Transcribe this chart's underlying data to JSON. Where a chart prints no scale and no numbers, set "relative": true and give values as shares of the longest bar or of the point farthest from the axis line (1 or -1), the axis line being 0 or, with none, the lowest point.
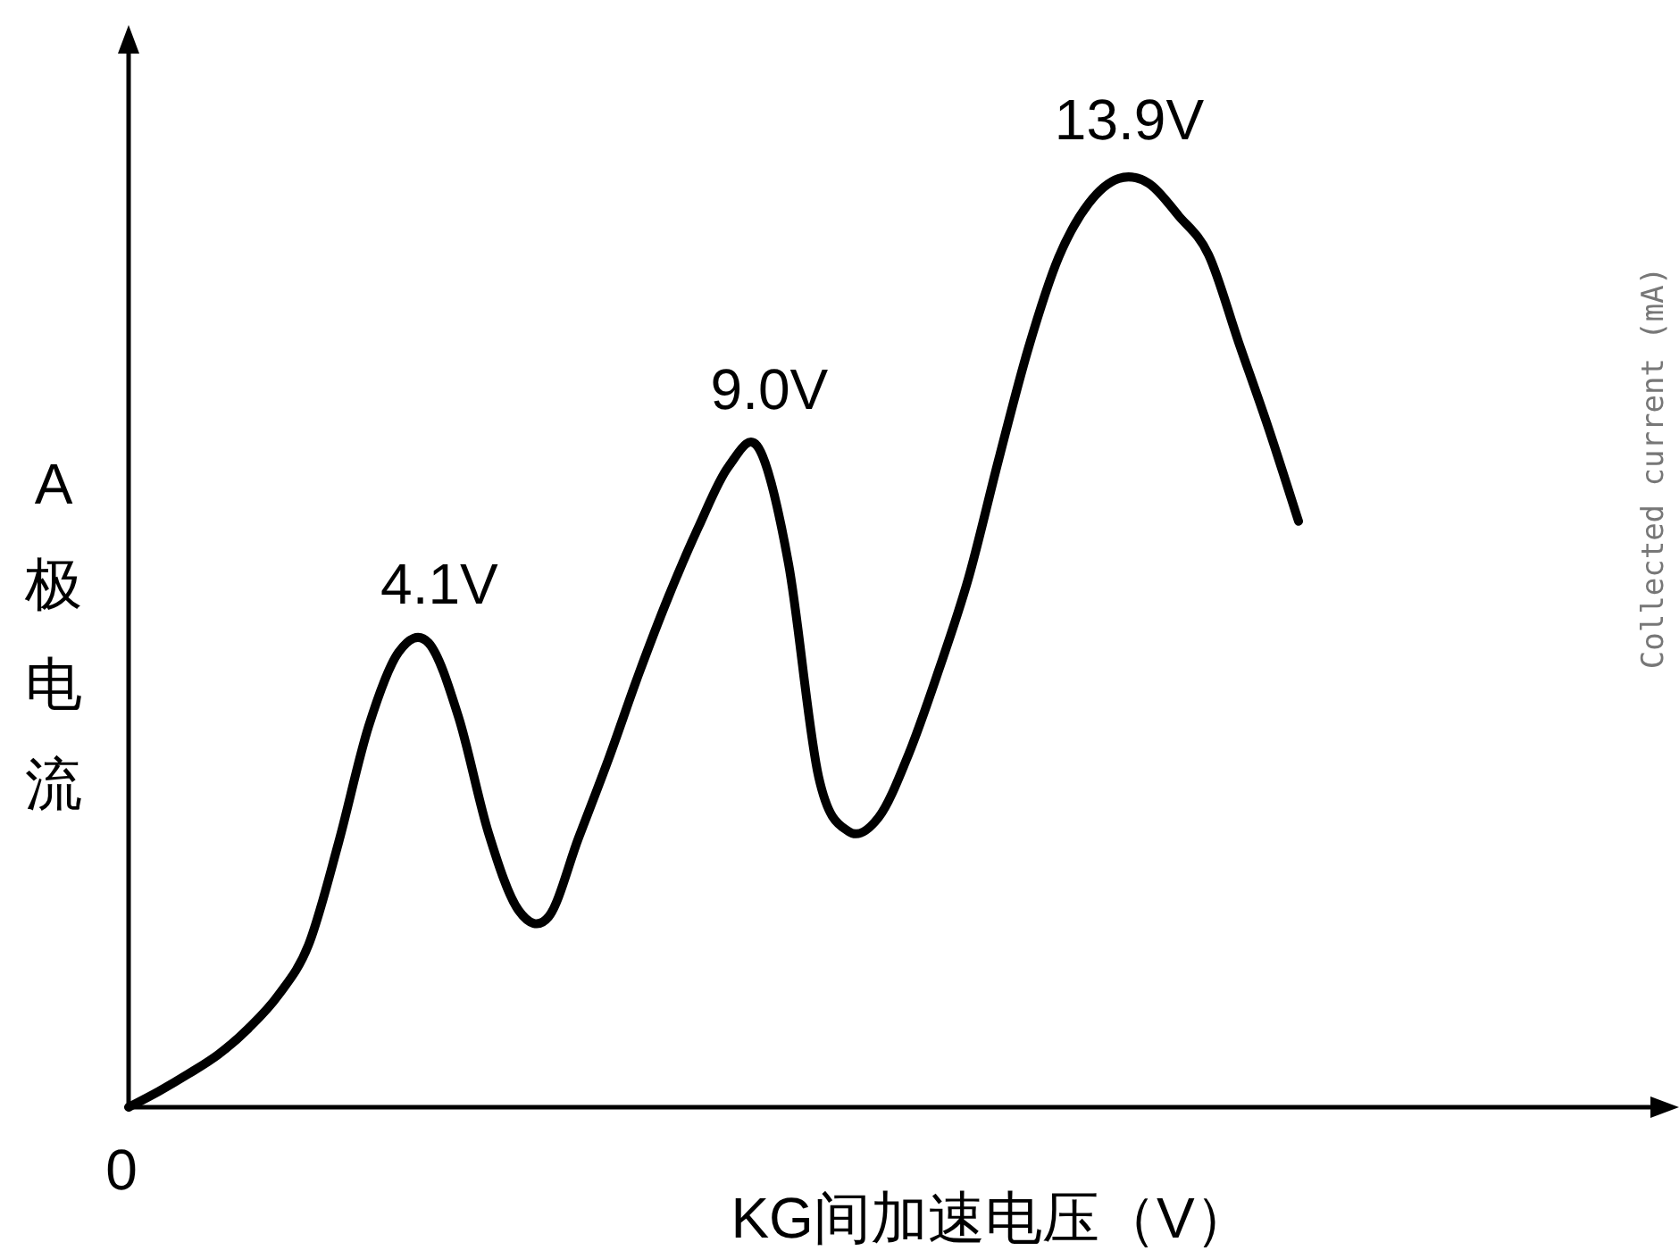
{
  "chart_data": {
    "type": "line",
    "xlabel": "KG间加速电压（V）",
    "ylabel": "A极电流",
    "relative": true,
    "color": "#000000",
    "categories": [
      null,
      null,
      null,
      null,
      null,
      null,
      null,
      null,
      null,
      null,
      null,
      null,
      null,
      null,
      null,
      null,
      null,
      null,
      null,
      null,
      null,
      null,
      null,
      null,
      null,
      null,
      null,
      null,
      null,
      null,
      null,
      null,
      null,
      null,
      null,
      null,
      null,
      null,
      null,
      null
    ],
    "values": [
      0,
      0.017,
      0.036,
      0.057,
      0.085,
      0.121,
      0.175,
      0.285,
      0.41,
      0.49,
      0.5,
      0.42,
      0.295,
      0.212,
      0.205,
      0.29,
      0.375,
      0.466,
      0.55,
      0.625,
      0.69,
      0.71,
      0.585,
      0.356,
      0.297,
      0.312,
      0.38,
      0.47,
      0.57,
      0.697,
      0.818,
      0.915,
      0.973,
      1,
      0.995,
      0.96,
      0.918,
      0.824,
      0.731,
      0.631
    ],
    "annotations": [
      {
        "text": "0",
        "y": 0
      },
      {
        "text": "4.1V",
        "y": 0.5
      },
      {
        "text": "9.0V",
        "y": 0.71
      },
      {
        "text": "13.9V",
        "y": 1
      },
      "Collected current (mA)"
    ]
  }
}
